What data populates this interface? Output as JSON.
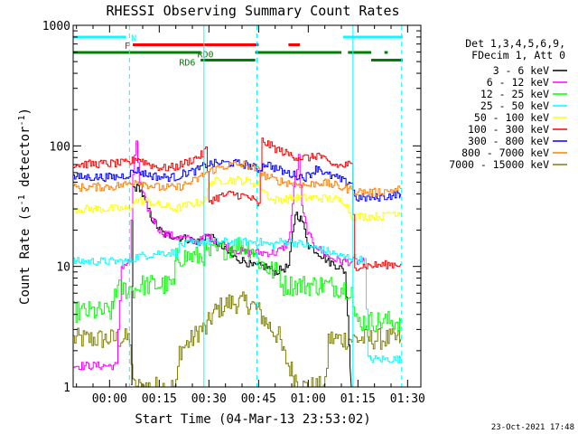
{
  "chart_data": {
    "type": "line",
    "title": "RHESSI Observing Summary Count Rates",
    "xlabel": "Start Time (04-Mar-13 23:53:02)",
    "ylabel_main": "Count Rate (s",
    "ylabel_sup1": "-1",
    "ylabel_mid": " detector",
    "ylabel_sup2": "-1",
    "ylabel_end": ")",
    "footer_date": "23-Oct-2021 17:48",
    "x_unit": "minutes since 23:53:02",
    "xlim": [
      -4,
      101
    ],
    "ylim": [
      1,
      1000
    ],
    "yscale": "log",
    "x_ticks": [
      {
        "label": "00:00",
        "x": 7
      },
      {
        "label": "00:15",
        "x": 22
      },
      {
        "label": "00:30",
        "x": 37
      },
      {
        "label": "00:45",
        "x": 52
      },
      {
        "label": "01:00",
        "x": 67
      },
      {
        "label": "01:15",
        "x": 82
      },
      {
        "label": "01:30",
        "x": 97
      }
    ],
    "y_ticks": [
      {
        "label": "1",
        "y": 1
      },
      {
        "label": "10",
        "y": 10
      },
      {
        "label": "100",
        "y": 100
      },
      {
        "label": "1000",
        "y": 1000
      }
    ],
    "legend_header": [
      "Det 1,3,4,5,6,9,",
      "FDecim 1, Att 0"
    ],
    "series": [
      {
        "name": "3 - 6 keV",
        "color": "#000000",
        "points": [
          [
            13.5,
            1
          ],
          [
            14,
            45
          ],
          [
            16,
            45
          ],
          [
            18,
            32
          ],
          [
            20,
            24
          ],
          [
            22,
            20
          ],
          [
            24,
            18
          ],
          [
            26,
            18
          ],
          [
            30,
            17
          ],
          [
            34,
            16
          ],
          [
            36,
            18
          ],
          [
            38,
            17
          ],
          [
            40,
            15
          ],
          [
            44,
            12
          ],
          [
            48,
            11
          ],
          [
            50,
            10
          ],
          [
            54,
            10
          ],
          [
            57,
            9
          ],
          [
            61,
            10
          ],
          [
            63,
            28
          ],
          [
            65,
            24
          ],
          [
            67,
            15
          ],
          [
            70,
            13
          ],
          [
            73,
            11
          ],
          [
            76,
            10
          ],
          [
            78,
            9
          ],
          [
            80,
            1
          ]
        ]
      },
      {
        "name": "6 - 12 keV",
        "color": "#ff00ff",
        "points": [
          [
            -4,
            1.5
          ],
          [
            9,
            1.5
          ],
          [
            10.5,
            10
          ],
          [
            13,
            11
          ],
          [
            14,
            55
          ],
          [
            15,
            110
          ],
          [
            16,
            50
          ],
          [
            18,
            32
          ],
          [
            20,
            25
          ],
          [
            22,
            20
          ],
          [
            25,
            18
          ],
          [
            30,
            17
          ],
          [
            34,
            16
          ],
          [
            36,
            18
          ],
          [
            38,
            17
          ],
          [
            40,
            16
          ],
          [
            44,
            14
          ],
          [
            48,
            13
          ],
          [
            52,
            13
          ],
          [
            57,
            13
          ],
          [
            59,
            14
          ],
          [
            61,
            16
          ],
          [
            63,
            55
          ],
          [
            64,
            80
          ],
          [
            65,
            30
          ],
          [
            67,
            18
          ],
          [
            70,
            14
          ],
          [
            73,
            12
          ],
          [
            77,
            11
          ],
          [
            79,
            11
          ],
          [
            80,
            11
          ],
          [
            84,
            11
          ]
        ]
      },
      {
        "name": "12 - 25 keV",
        "color": "#00ff00",
        "points": [
          [
            -4,
            4.2
          ],
          [
            8,
            4.2
          ],
          [
            8.5,
            6.5
          ],
          [
            15,
            6.5
          ],
          [
            16,
            7
          ],
          [
            25,
            7
          ],
          [
            26.5,
            7
          ],
          [
            27,
            12
          ],
          [
            34,
            12
          ],
          [
            38,
            13
          ],
          [
            42,
            14
          ],
          [
            46,
            15
          ],
          [
            50,
            14
          ],
          [
            52,
            11
          ],
          [
            55,
            9.5
          ],
          [
            57,
            9
          ],
          [
            58,
            9
          ],
          [
            59,
            7
          ],
          [
            72,
            7
          ],
          [
            80,
            6.5
          ],
          [
            81,
            3.5
          ],
          [
            95,
            3.5
          ]
        ]
      },
      {
        "name": "25 - 50 keV",
        "color": "#00ffff",
        "points": [
          [
            -4,
            11
          ],
          [
            13,
            11
          ],
          [
            15,
            12
          ],
          [
            22,
            13
          ],
          [
            27,
            13
          ],
          [
            28,
            15
          ],
          [
            34,
            16
          ],
          [
            40,
            16
          ],
          [
            46,
            16
          ],
          [
            50,
            16
          ],
          [
            52,
            16
          ],
          [
            56,
            15
          ],
          [
            58,
            16
          ],
          [
            62,
            16
          ],
          [
            66,
            15
          ],
          [
            70,
            14
          ],
          [
            74,
            13
          ],
          [
            77,
            12
          ],
          [
            80,
            12
          ],
          [
            84,
            11
          ],
          [
            85,
            1.7
          ],
          [
            95,
            1.7
          ]
        ]
      },
      {
        "name": "50 - 100 keV",
        "color": "#ffff00",
        "points": [
          [
            -4,
            30
          ],
          [
            13,
            30
          ],
          [
            14,
            35
          ],
          [
            18,
            35
          ],
          [
            22,
            32
          ],
          [
            27,
            30
          ],
          [
            30,
            32
          ],
          [
            34,
            34
          ],
          [
            36,
            36
          ],
          [
            37,
            50
          ],
          [
            42,
            52
          ],
          [
            46,
            52
          ],
          [
            50,
            50
          ],
          [
            52,
            48
          ],
          [
            56,
            35
          ],
          [
            58,
            36
          ],
          [
            64,
            37
          ],
          [
            70,
            37
          ],
          [
            75,
            36
          ],
          [
            77,
            35
          ],
          [
            78,
            35
          ],
          [
            80,
            26
          ],
          [
            90,
            26
          ],
          [
            91,
            28
          ],
          [
            95,
            28
          ]
        ]
      },
      {
        "name": "100 - 300 keV",
        "color": "#ff0000",
        "points": [
          [
            -4,
            70
          ],
          [
            13,
            72
          ],
          [
            15,
            80
          ],
          [
            19,
            70
          ],
          [
            23,
            65
          ],
          [
            27,
            67
          ],
          [
            31,
            75
          ],
          [
            35,
            85
          ],
          [
            36,
            95
          ],
          [
            37,
            35
          ],
          [
            40,
            38
          ],
          [
            44,
            40
          ],
          [
            48,
            38
          ],
          [
            50,
            36
          ],
          [
            52,
            32
          ],
          [
            53,
            110
          ],
          [
            57,
            95
          ],
          [
            61,
            85
          ],
          [
            64,
            80
          ],
          [
            68,
            80
          ],
          [
            70,
            85
          ],
          [
            72,
            75
          ],
          [
            74,
            70
          ],
          [
            77,
            68
          ],
          [
            79,
            70
          ],
          [
            80,
            68
          ],
          [
            81,
            10
          ],
          [
            95,
            10.5
          ]
        ]
      },
      {
        "name": "300 - 800 keV",
        "color": "#0000ff",
        "points": [
          [
            -4,
            55
          ],
          [
            8,
            55
          ],
          [
            12,
            57
          ],
          [
            15,
            63
          ],
          [
            18,
            58
          ],
          [
            22,
            55
          ],
          [
            27,
            55
          ],
          [
            30,
            60
          ],
          [
            33,
            62
          ],
          [
            36,
            70
          ],
          [
            40,
            72
          ],
          [
            44,
            72
          ],
          [
            48,
            70
          ],
          [
            50,
            67
          ],
          [
            52,
            63
          ],
          [
            54,
            72
          ],
          [
            57,
            65
          ],
          [
            60,
            60
          ],
          [
            63,
            57
          ],
          [
            66,
            55
          ],
          [
            68,
            60
          ],
          [
            70,
            67
          ],
          [
            72,
            58
          ],
          [
            75,
            55
          ],
          [
            78,
            50
          ],
          [
            80,
            50
          ],
          [
            81,
            37
          ],
          [
            86,
            37
          ],
          [
            90,
            38
          ],
          [
            95,
            40
          ]
        ]
      },
      {
        "name": "800 - 7000 keV",
        "color": "#ff8000",
        "points": [
          [
            -4,
            45
          ],
          [
            8,
            46
          ],
          [
            12,
            48
          ],
          [
            15,
            52
          ],
          [
            18,
            48
          ],
          [
            22,
            45
          ],
          [
            27,
            45
          ],
          [
            30,
            48
          ],
          [
            33,
            52
          ],
          [
            36,
            60
          ],
          [
            40,
            66
          ],
          [
            44,
            70
          ],
          [
            48,
            70
          ],
          [
            50,
            66
          ],
          [
            52,
            62
          ],
          [
            54,
            56
          ],
          [
            57,
            52
          ],
          [
            60,
            50
          ],
          [
            64,
            48
          ],
          [
            67,
            47
          ],
          [
            70,
            50
          ],
          [
            72,
            49
          ],
          [
            75,
            47
          ],
          [
            77,
            45
          ],
          [
            80,
            43
          ],
          [
            81,
            42
          ],
          [
            86,
            41
          ],
          [
            90,
            42
          ],
          [
            95,
            44
          ]
        ]
      },
      {
        "name": "7000 - 15000 keV",
        "color": "#808000",
        "points": [
          [
            -4,
            2.5
          ],
          [
            13,
            2.5
          ],
          [
            14,
            1
          ],
          [
            27,
            1
          ],
          [
            28,
            2
          ],
          [
            32,
            2.5
          ],
          [
            34,
            3
          ],
          [
            36,
            3
          ],
          [
            38,
            4
          ],
          [
            40,
            4.5
          ],
          [
            43,
            5
          ],
          [
            46,
            5
          ],
          [
            48,
            5
          ],
          [
            50,
            4.8
          ],
          [
            52,
            4.2
          ],
          [
            54,
            3.5
          ],
          [
            56,
            3
          ],
          [
            58,
            2.6
          ],
          [
            59,
            2
          ],
          [
            61,
            1.5
          ],
          [
            63,
            1.2
          ],
          [
            65,
            1
          ],
          [
            72,
            1
          ],
          [
            73,
            2.5
          ],
          [
            95,
            2.5
          ]
        ]
      }
    ],
    "flag_bars": [
      {
        "name": "N",
        "color": "#00ffff",
        "level": 0,
        "segments": [
          [
            -4,
            12
          ],
          [
            77.5,
            95.5
          ]
        ],
        "label": "N",
        "label_x": 13.5,
        "label_level": 0.2
      },
      {
        "name": "F",
        "color": "#ff0000",
        "level": 1,
        "segments": [
          [
            14,
            52
          ],
          [
            61,
            64.5
          ]
        ],
        "label": "F",
        "label_x": 11.5,
        "label_level": 1.2
      },
      {
        "name": "RD0",
        "color": "#008000",
        "level": 2,
        "segments": [
          [
            -4,
            34.5
          ],
          [
            51,
            77
          ],
          [
            79,
            86
          ],
          [
            90,
            91
          ]
        ],
        "label": "RD0",
        "label_x": 33.5,
        "label_level": 2.3
      },
      {
        "name": "RD6",
        "color": "#008000",
        "level": 3,
        "segments": [
          [
            34.5,
            51
          ],
          [
            86,
            95.5
          ]
        ],
        "label": "RD6",
        "label_x": 28,
        "label_level": 3.35
      }
    ],
    "vertical_markers": {
      "color": "#00ffff",
      "solid_x": [
        35.5,
        80.5
      ],
      "dashed_x": [
        13,
        51.5,
        95.2
      ],
      "solid_dash_from": [
        1,
        1000
      ]
    }
  }
}
